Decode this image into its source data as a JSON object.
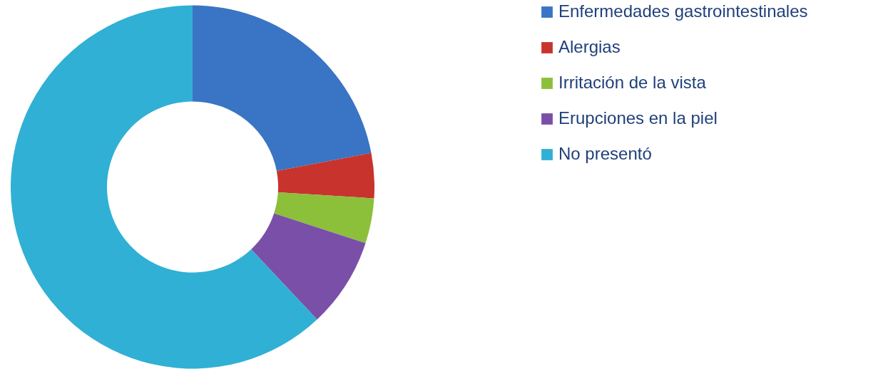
{
  "chart_data": {
    "type": "donut",
    "categories": [
      "Enfermedades gastrointestinales",
      "Alergias",
      "Irritación de la vista",
      "Erupciones en la piel",
      "No presentó"
    ],
    "values": [
      22,
      4,
      4,
      8,
      62
    ],
    "colors": [
      "#3a74c4",
      "#c8332e",
      "#8cbf3a",
      "#7a4fa8",
      "#30b0d4"
    ],
    "legend": "right"
  }
}
